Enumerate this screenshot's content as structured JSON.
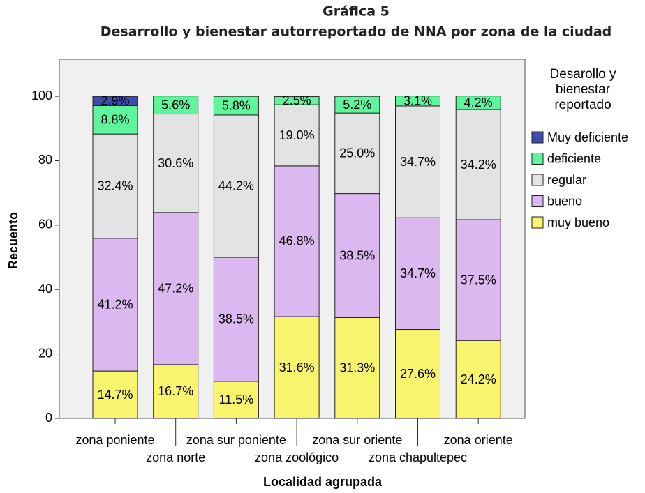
{
  "chart_data": {
    "type": "stacked_bar",
    "title": "Gráfica 5",
    "subtitle": "Desarrollo y bienestar autorreportado de NNA por zona de la ciudad",
    "x_label": "Localidad agrupada",
    "y_label": "Recuento",
    "legend_title": "Desarollo y bienestar reportado",
    "categories": [
      "zona poniente",
      "zona norte",
      "zona sur poniente",
      "zona zoológico",
      "zona sur oriente",
      "zona chapultepec",
      "zona oriente"
    ],
    "series": [
      {
        "name": "muy bueno",
        "color": "#f8f46e",
        "values": [
          14.7,
          16.7,
          11.5,
          31.6,
          31.3,
          27.6,
          24.2
        ],
        "value_labels": [
          "14.7%",
          "16.7%",
          "11.5%",
          "31.6%",
          "31.3%",
          "27.6%",
          "24.2%"
        ]
      },
      {
        "name": "bueno",
        "color": "#dcb8f0",
        "values": [
          41.2,
          47.2,
          38.5,
          46.8,
          38.5,
          34.7,
          37.5
        ],
        "value_labels": [
          "41.2%",
          "47.2%",
          "38.5%",
          "46.8%",
          "38.5%",
          "34.7%",
          "37.5%"
        ]
      },
      {
        "name": "regular",
        "color": "#e3e3e3",
        "values": [
          32.4,
          30.6,
          44.2,
          19.0,
          25.0,
          34.7,
          34.2
        ],
        "value_labels": [
          "32.4%",
          "30.6%",
          "44.2%",
          "19.0%",
          "25.0%",
          "34.7%",
          "34.2%"
        ]
      },
      {
        "name": "deficiente",
        "color": "#5ef59c",
        "values": [
          8.8,
          5.6,
          5.8,
          2.5,
          5.2,
          3.1,
          4.2
        ],
        "value_labels": [
          "8.8%",
          "5.6%",
          "5.8%",
          "2.5%",
          "5.2%",
          "3.1%",
          "4.2%"
        ]
      },
      {
        "name": "Muy deficiente",
        "color": "#3b4fa8",
        "values": [
          2.9,
          null,
          null,
          null,
          null,
          null,
          null
        ],
        "value_labels": [
          "2.9%",
          null,
          null,
          null,
          null,
          null,
          null
        ]
      }
    ],
    "ylim": [
      0,
      111.5
    ],
    "yticks": [
      0,
      20,
      40,
      60,
      80,
      100
    ],
    "legend": "right"
  }
}
